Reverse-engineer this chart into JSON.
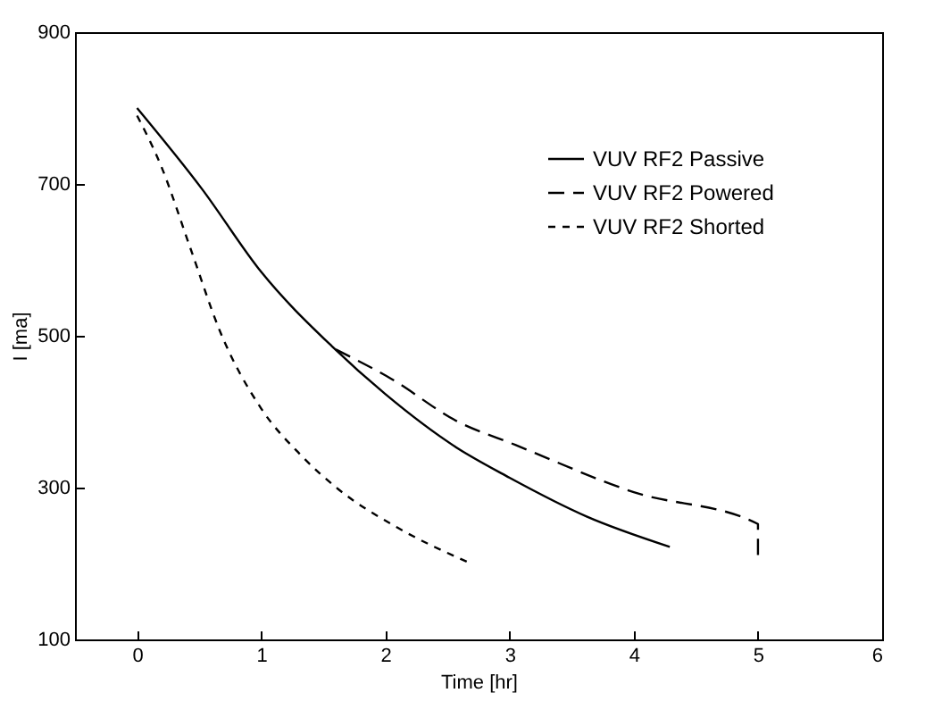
{
  "chart_data": {
    "type": "line",
    "xlabel": "Time [hr]",
    "ylabel": "I [ma]",
    "xlim": [
      -0.5,
      6
    ],
    "xticks": [
      0,
      1,
      2,
      3,
      4,
      5,
      6
    ],
    "ylim": [
      100,
      900
    ],
    "yticks": [
      100,
      300,
      500,
      700,
      900
    ],
    "grid": false,
    "legend": "top right",
    "marker": "none",
    "series": [
      {
        "name": "VUV RF2 Passive",
        "color": "#000000",
        "line_style": "solid",
        "x": [
          0,
          0.52,
          1,
          1.57,
          2,
          2.57,
          3,
          3.62,
          4.29
        ],
        "values": [
          800,
          694,
          584,
          486,
          423,
          353,
          313,
          262,
          222
        ]
      },
      {
        "name": "VUV RF2 Powered",
        "color": "#000000",
        "line_style": "dashed",
        "x": [
          1.6,
          2.05,
          2.57,
          3.05,
          4,
          5,
          5
        ],
        "values": [
          482,
          443,
          388,
          356,
          294,
          252,
          210
        ]
      },
      {
        "name": "VUV RF2 Shorted",
        "color": "#000000",
        "line_style": "dotted",
        "x": [
          0,
          0.19,
          0.43,
          0.67,
          1,
          1.33,
          1.62,
          2.1,
          2.69
        ],
        "values": [
          790,
          725,
          615,
          505,
          404,
          341,
          298,
          247,
          200
        ]
      }
    ]
  }
}
